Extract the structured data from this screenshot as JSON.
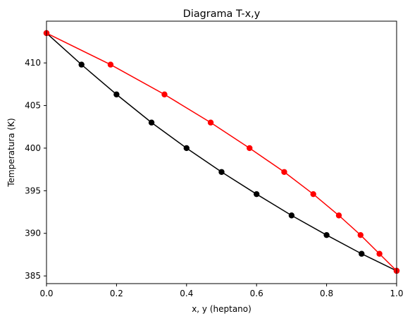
{
  "chart_data": {
    "type": "line",
    "title": "Diagrama T-x,y",
    "xlabel": "x, y (heptano)",
    "ylabel": "Temperatura (K)",
    "xlim": [
      0.0,
      1.0
    ],
    "ylim": [
      384.1,
      414.9
    ],
    "grid": false,
    "xticks": [
      0.0,
      0.2,
      0.4,
      0.6,
      0.8,
      1.0
    ],
    "xtick_labels": [
      "0.0",
      "0.2",
      "0.4",
      "0.6",
      "0.8",
      "1.0"
    ],
    "yticks": [
      385,
      390,
      395,
      400,
      405,
      410
    ],
    "ytick_labels": [
      "385",
      "390",
      "395",
      "400",
      "405",
      "410"
    ],
    "series": [
      {
        "color": "#000000",
        "marker": "circle",
        "x": [
          0.0,
          0.1,
          0.2,
          0.3,
          0.4,
          0.5,
          0.6,
          0.7,
          0.8,
          0.9,
          1.0
        ],
        "y": [
          413.5,
          409.8,
          406.3,
          403.0,
          400.0,
          397.2,
          394.6,
          392.1,
          389.8,
          387.6,
          385.6
        ]
      },
      {
        "color": "#ff0000",
        "marker": "circle",
        "x": [
          0.0,
          0.183,
          0.337,
          0.469,
          0.58,
          0.679,
          0.762,
          0.835,
          0.897,
          0.951,
          1.0
        ],
        "y": [
          413.5,
          409.8,
          406.3,
          403.0,
          400.0,
          397.2,
          394.6,
          392.1,
          389.8,
          387.6,
          385.6
        ]
      }
    ]
  }
}
